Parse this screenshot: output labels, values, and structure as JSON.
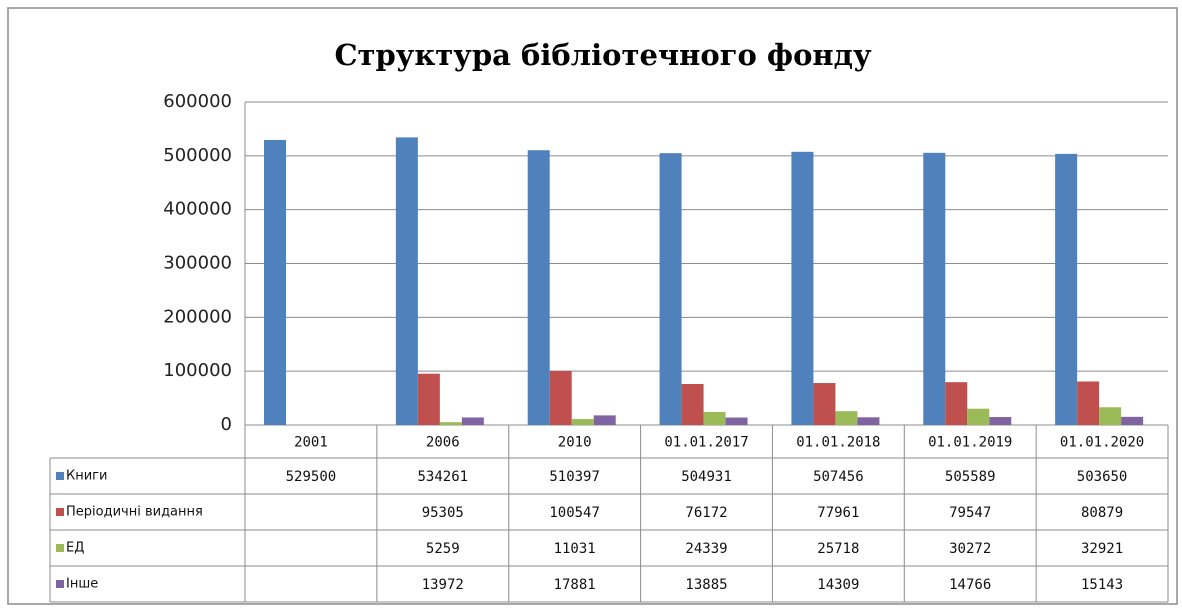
{
  "chart_data": {
    "type": "bar",
    "title": "Структура бібліотечного фонду",
    "categories": [
      "2001",
      "2006",
      "2010",
      "01.01.2017",
      "01.01.2018",
      "01.01.2019",
      "01.01.2020"
    ],
    "series": [
      {
        "name": "Книги",
        "color": "#4f81bd",
        "values": [
          529500,
          534261,
          510397,
          504931,
          507456,
          505589,
          503650
        ]
      },
      {
        "name": "Періодичні видання",
        "color": "#c0504d",
        "values": [
          null,
          95305,
          100547,
          76172,
          77961,
          79547,
          80879
        ]
      },
      {
        "name": "ЕД",
        "color": "#9bbb59",
        "values": [
          null,
          5259,
          11031,
          24339,
          25718,
          30272,
          32921
        ]
      },
      {
        "name": "Інше",
        "color": "#8064a2",
        "values": [
          null,
          13972,
          17881,
          13885,
          14309,
          14766,
          15143
        ]
      }
    ],
    "ylim": [
      0,
      600000
    ],
    "yticks": [
      0,
      100000,
      200000,
      300000,
      400000,
      500000,
      600000
    ],
    "grid": true
  }
}
